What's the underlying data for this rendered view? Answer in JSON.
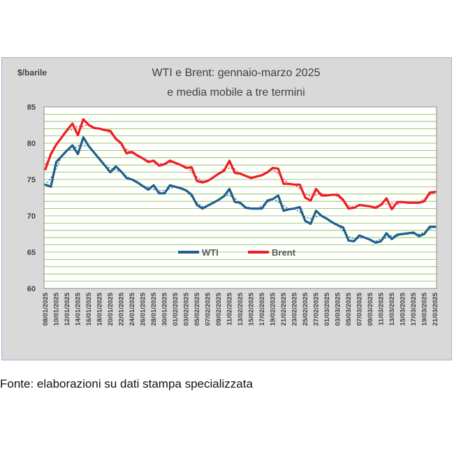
{
  "source_note": "Fonte: elaborazioni su dati stampa specializzata",
  "chart_data": {
    "type": "line",
    "title_line1": "WTI e Brent: gennaio-marzo 2025",
    "title_line2": "e media mobile a tre termini",
    "ylabel": "$/barile",
    "ylim": [
      60,
      85
    ],
    "yticks": [
      60,
      65,
      70,
      75,
      80,
      85
    ],
    "grid": true,
    "legend_position": "center-left",
    "x": [
      "08/01/2025",
      "09/01/2025",
      "10/01/2025",
      "11/01/2025",
      "12/01/2025",
      "13/01/2025",
      "14/01/2025",
      "15/01/2025",
      "16/01/2025",
      "17/01/2025",
      "18/01/2025",
      "19/01/2025",
      "20/01/2025",
      "21/01/2025",
      "22/01/2025",
      "23/01/2025",
      "24/01/2025",
      "25/01/2025",
      "26/01/2025",
      "27/01/2025",
      "28/01/2025",
      "29/01/2025",
      "30/01/2025",
      "31/01/2025",
      "01/02/2025",
      "02/02/2025",
      "03/02/2025",
      "04/02/2025",
      "05/02/2025",
      "06/02/2025",
      "07/02/2025",
      "08/02/2025",
      "09/02/2025",
      "10/02/2025",
      "11/02/2025",
      "12/02/2025",
      "13/02/2025",
      "14/02/2025",
      "15/02/2025",
      "16/02/2025",
      "17/02/2025",
      "18/02/2025",
      "19/02/2025",
      "20/02/2025",
      "21/02/2025",
      "22/02/2025",
      "23/02/2025",
      "24/02/2025",
      "25/02/2025",
      "26/02/2025",
      "27/02/2025",
      "28/02/2025",
      "01/03/2025",
      "02/03/2025",
      "03/03/2025",
      "04/03/2025",
      "05/03/2025",
      "06/03/2025",
      "07/03/2025",
      "08/03/2025",
      "09/03/2025",
      "10/03/2025",
      "11/03/2025",
      "12/03/2025",
      "13/03/2025",
      "14/03/2025",
      "15/03/2025",
      "16/03/2025",
      "17/03/2025",
      "18/03/2025",
      "19/03/2025",
      "20/03/2025",
      "21/03/2025"
    ],
    "xtick_labels": [
      "08/01/2025",
      "10/01/2025",
      "12/01/2025",
      "14/01/2025",
      "16/01/2025",
      "18/01/2025",
      "20/01/2025",
      "22/01/2025",
      "24/01/2025",
      "26/01/2025",
      "28/01/2025",
      "30/01/2025",
      "01/02/2025",
      "03/02/2025",
      "05/02/2025",
      "07/02/2025",
      "09/02/2025",
      "11/02/2025",
      "13/02/2025",
      "15/02/2025",
      "17/02/2025",
      "19/02/2025",
      "21/02/2025",
      "23/02/2025",
      "25/02/2025",
      "27/02/2025",
      "01/03/2025",
      "03/03/2025",
      "05/03/2025",
      "07/03/2025",
      "09/03/2025",
      "11/03/2025",
      "13/03/2025",
      "15/03/2025",
      "17/03/2025",
      "19/03/2025",
      "21/03/2025"
    ],
    "series": [
      {
        "name": "WTI",
        "color": "#1f5f8b",
        "values": [
          74.3,
          74.0,
          77.4,
          78.2,
          79.0,
          79.7,
          78.5,
          80.8,
          79.6,
          78.7,
          77.8,
          76.9,
          76.0,
          76.8,
          76.1,
          75.2,
          75.0,
          74.6,
          74.1,
          73.6,
          74.2,
          73.1,
          73.1,
          74.2,
          74.0,
          73.8,
          73.5,
          72.9,
          71.5,
          71.0,
          71.4,
          71.8,
          72.2,
          72.7,
          73.7,
          71.9,
          71.8,
          71.1,
          71.0,
          71.0,
          71.0,
          72.1,
          72.3,
          72.8,
          70.7,
          70.9,
          71.0,
          71.2,
          69.3,
          68.9,
          70.7,
          70.0,
          69.6,
          69.1,
          68.7,
          68.4,
          66.6,
          66.5,
          67.3,
          67.0,
          66.7,
          66.3,
          66.5,
          67.6,
          66.8,
          67.4,
          67.5,
          67.6,
          67.7,
          67.2,
          67.5,
          68.5,
          68.5
        ]
      },
      {
        "name": "Brent",
        "color": "#ee1c25",
        "values": [
          76.4,
          78.5,
          79.8,
          80.8,
          81.8,
          82.7,
          81.1,
          83.3,
          82.5,
          82.1,
          82.0,
          81.8,
          81.7,
          80.6,
          80.0,
          78.6,
          78.8,
          78.3,
          77.9,
          77.4,
          77.6,
          76.9,
          77.1,
          77.6,
          77.3,
          77.0,
          76.6,
          76.7,
          74.8,
          74.6,
          74.8,
          75.3,
          75.8,
          76.2,
          77.6,
          75.9,
          75.8,
          75.5,
          75.2,
          75.4,
          75.6,
          76.0,
          76.6,
          76.5,
          74.4,
          74.4,
          74.3,
          74.3,
          72.5,
          72.1,
          73.7,
          72.8,
          72.8,
          72.9,
          72.9,
          72.2,
          71.0,
          71.1,
          71.5,
          71.4,
          71.3,
          71.1,
          71.5,
          72.4,
          70.9,
          71.9,
          71.9,
          71.8,
          71.8,
          71.8,
          72.0,
          73.2,
          73.3
        ]
      }
    ]
  }
}
